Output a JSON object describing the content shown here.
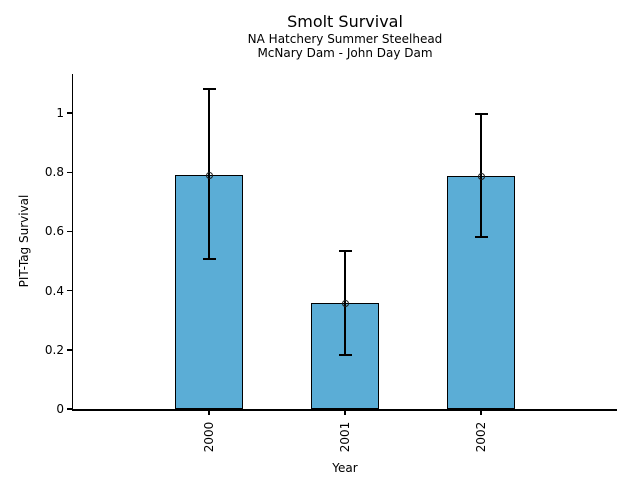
{
  "chart_data": {
    "type": "bar",
    "title": "Smolt Survival",
    "subtitle_line1": "NA Hatchery Summer Steelhead",
    "subtitle_line2": "McNary Dam - John Day Dam",
    "xlabel": "Year",
    "ylabel": "PIT-Tag Survival",
    "categories": [
      "2000",
      "2001",
      "2002"
    ],
    "values": [
      0.79,
      0.357,
      0.787
    ],
    "error_low": [
      0.507,
      0.182,
      0.581
    ],
    "error_high": [
      1.081,
      0.534,
      0.997
    ],
    "yticks": [
      0,
      0.2,
      0.4,
      0.6,
      0.8,
      1
    ],
    "ytick_labels": [
      "0",
      "0.2",
      "0.4",
      "0.6",
      "0.8",
      "1"
    ],
    "ylim": [
      0,
      1.132
    ],
    "grid": false,
    "legend": null,
    "marker": "open-circle",
    "bar_color": "#5badd6",
    "bar_edge_color": "#000000",
    "error_color": "#000000"
  }
}
